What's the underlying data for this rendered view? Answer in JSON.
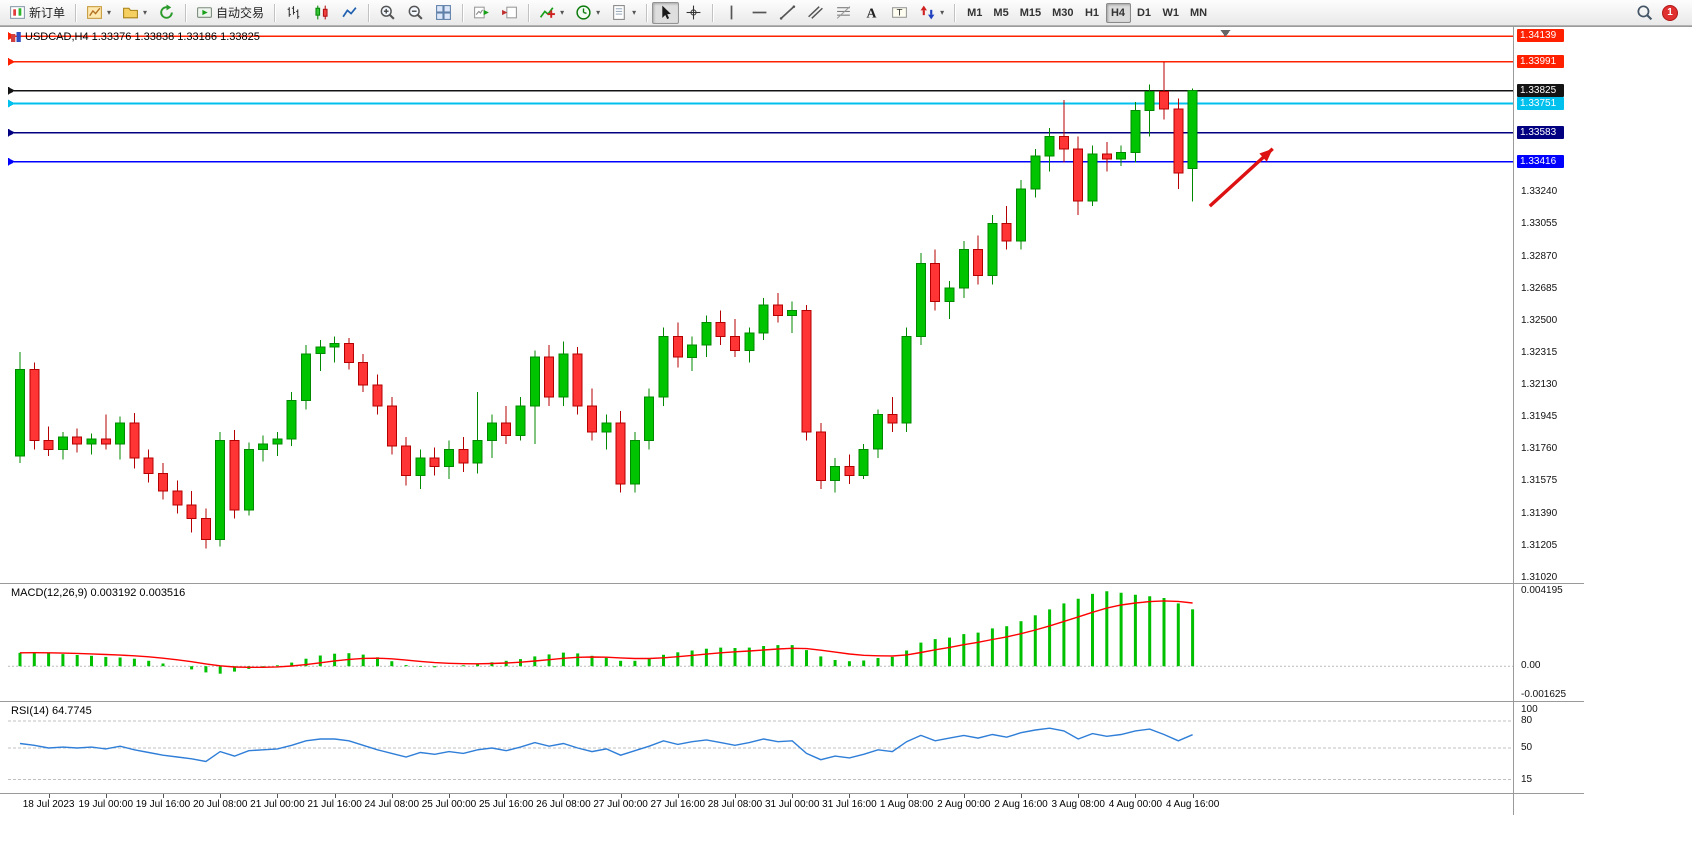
{
  "toolbar": {
    "new_order_label": "新订单",
    "autotrading_label": "自动交易",
    "timeframes": [
      "M1",
      "M5",
      "M15",
      "M30",
      "H1",
      "H4",
      "D1",
      "W1",
      "MN"
    ],
    "active_timeframe": "H4",
    "notification_count": "1"
  },
  "icons": {
    "new-order-icon": "page-with-red-green-candles",
    "new-chart-icon": "yellow-chart-page",
    "profiles-icon": "folder",
    "refresh-icon": "green-circular-arrow",
    "autotrading-icon": "green-play-panel",
    "bar-chart-icon": "ohlc-bars",
    "candlestick-chart-icon": "green-red-candles",
    "line-chart-icon": "zigzag-line",
    "zoom-in-icon": "magnifier-plus",
    "zoom-out-icon": "magnifier-minus",
    "tile-windows-icon": "2x2-grid",
    "auto-scroll-icon": "chart-green-arrow",
    "chart-shift-icon": "chart-red-triangle",
    "indicators-icon": "green-line-red-plus",
    "periods-icon": "clock",
    "templates-icon": "document-lines",
    "cursor-icon": "pointer-arrow",
    "crosshair-icon": "cross-circle",
    "vertical-line-icon": "|",
    "horizontal-line-icon": "—",
    "trendline-icon": "/",
    "channel-icon": "double-diagonal",
    "fibonacci-icon": "stacked-lines-diagonal",
    "text-icon": "A",
    "label-icon": "T-box",
    "arrows-icon": "red-up-blue-down-arrows",
    "search-icon": "magnifier",
    "chevron-down-icon": "▾",
    "chart-shift-marker": "▼"
  },
  "chart": {
    "header": "USDCAD,H4 1.33376 1.33838 1.33186 1.33825",
    "symbol": "USDCAD",
    "period": "H4",
    "ohlc": {
      "open": "1.33376",
      "high": "1.33838",
      "low": "1.33186",
      "close": "1.33825"
    }
  },
  "macd": {
    "label": "MACD(12,26,9) 0.003192 0.003516"
  },
  "rsi": {
    "label": "RSI(14) 64.7745"
  },
  "chart_data": {
    "type": "candlestick",
    "symbol": "USDCAD",
    "timeframe": "H4",
    "style": {
      "up_color": "#00c400",
      "up_border": "#008800",
      "down_color": "#ff3434",
      "down_border": "#b40000",
      "background": "#ffffff"
    },
    "price_axis": {
      "y_range": [
        1.3099,
        1.3418
      ],
      "ticks": [
        "1.33240",
        "1.33055",
        "1.32870",
        "1.32685",
        "1.32500",
        "1.32315",
        "1.32130",
        "1.31945",
        "1.31760",
        "1.31575",
        "1.31390",
        "1.31205",
        "1.31020"
      ]
    },
    "levels": [
      {
        "price": 1.34139,
        "label": "1.34139",
        "color": "#ff2000",
        "type": "resistance"
      },
      {
        "price": 1.33991,
        "label": "1.33991",
        "color": "#ff2000",
        "type": "resistance"
      },
      {
        "price": 1.33825,
        "label": "1.33825",
        "color": "#141414",
        "type": "current-price"
      },
      {
        "price": 1.33751,
        "label": "1.33751",
        "color": "#00c0ee",
        "type": "resistance"
      },
      {
        "price": 1.33583,
        "label": "1.33583",
        "color": "#000080",
        "type": "support"
      },
      {
        "price": 1.33416,
        "label": "1.33416",
        "color": "#0000ff",
        "type": "support"
      }
    ],
    "candles": {
      "times": [
        "18 Jul 00:00",
        "18 Jul 04:00",
        "18 Jul 08:00",
        "18 Jul 12:00",
        "18 Jul 16:00",
        "18 Jul 20:00",
        "19 Jul 00:00",
        "19 Jul 04:00",
        "19 Jul 08:00",
        "19 Jul 12:00",
        "19 Jul 16:00",
        "19 Jul 20:00",
        "20 Jul 00:00",
        "20 Jul 04:00",
        "20 Jul 08:00",
        "20 Jul 12:00",
        "20 Jul 16:00",
        "20 Jul 20:00",
        "21 Jul 00:00",
        "21 Jul 04:00",
        "21 Jul 08:00",
        "21 Jul 12:00",
        "21 Jul 16:00",
        "21 Jul 20:00",
        "24 Jul 00:00",
        "24 Jul 04:00",
        "24 Jul 08:00",
        "24 Jul 12:00",
        "24 Jul 16:00",
        "24 Jul 20:00",
        "25 Jul 00:00",
        "25 Jul 04:00",
        "25 Jul 08:00",
        "25 Jul 12:00",
        "25 Jul 16:00",
        "25 Jul 20:00",
        "26 Jul 00:00",
        "26 Jul 04:00",
        "26 Jul 08:00",
        "26 Jul 12:00",
        "26 Jul 16:00",
        "26 Jul 20:00",
        "27 Jul 00:00",
        "27 Jul 04:00",
        "27 Jul 08:00",
        "27 Jul 12:00",
        "27 Jul 16:00",
        "27 Jul 20:00",
        "28 Jul 00:00",
        "28 Jul 04:00",
        "28 Jul 08:00",
        "28 Jul 12:00",
        "28 Jul 16:00",
        "28 Jul 20:00",
        "31 Jul 00:00",
        "31 Jul 04:00",
        "31 Jul 08:00",
        "31 Jul 12:00",
        "31 Jul 16:00",
        "31 Jul 20:00",
        "1 Aug 00:00",
        "1 Aug 04:00",
        "1 Aug 08:00",
        "1 Aug 12:00",
        "1 Aug 16:00",
        "1 Aug 20:00",
        "2 Aug 00:00",
        "2 Aug 04:00",
        "2 Aug 08:00",
        "2 Aug 12:00",
        "2 Aug 16:00",
        "2 Aug 20:00",
        "3 Aug 00:00",
        "3 Aug 04:00",
        "3 Aug 08:00",
        "3 Aug 12:00",
        "3 Aug 16:00",
        "3 Aug 20:00",
        "4 Aug 00:00",
        "4 Aug 04:00",
        "4 Aug 08:00",
        "4 Aug 12:00",
        "4 Aug 16:00"
      ],
      "ohlc": [
        [
          1.3172,
          1.3232,
          1.3168,
          1.3222
        ],
        [
          1.3222,
          1.3226,
          1.3176,
          1.3181
        ],
        [
          1.3181,
          1.3189,
          1.3172,
          1.3176
        ],
        [
          1.3176,
          1.3186,
          1.317,
          1.3183
        ],
        [
          1.3183,
          1.3188,
          1.3174,
          1.3179
        ],
        [
          1.3179,
          1.3185,
          1.3173,
          1.3182
        ],
        [
          1.3182,
          1.3196,
          1.3176,
          1.3179
        ],
        [
          1.3179,
          1.3195,
          1.317,
          1.3191
        ],
        [
          1.3191,
          1.3197,
          1.3165,
          1.3171
        ],
        [
          1.3171,
          1.3176,
          1.3157,
          1.3162
        ],
        [
          1.3162,
          1.3168,
          1.3147,
          1.3152
        ],
        [
          1.3152,
          1.3158,
          1.3139,
          1.3144
        ],
        [
          1.3144,
          1.3152,
          1.3128,
          1.3136
        ],
        [
          1.3136,
          1.3142,
          1.3119,
          1.3124
        ],
        [
          1.3124,
          1.3186,
          1.312,
          1.3181
        ],
        [
          1.3181,
          1.3187,
          1.3136,
          1.3141
        ],
        [
          1.3141,
          1.318,
          1.3138,
          1.3176
        ],
        [
          1.3176,
          1.3184,
          1.3169,
          1.3179
        ],
        [
          1.3179,
          1.3186,
          1.3172,
          1.3182
        ],
        [
          1.3182,
          1.3209,
          1.3178,
          1.3204
        ],
        [
          1.3204,
          1.3236,
          1.3199,
          1.3231
        ],
        [
          1.3231,
          1.3239,
          1.3221,
          1.3235
        ],
        [
          1.3235,
          1.3241,
          1.3226,
          1.3237
        ],
        [
          1.3237,
          1.324,
          1.3222,
          1.3226
        ],
        [
          1.3226,
          1.3231,
          1.3209,
          1.3213
        ],
        [
          1.3213,
          1.3219,
          1.3196,
          1.3201
        ],
        [
          1.3201,
          1.3206,
          1.3173,
          1.3178
        ],
        [
          1.3178,
          1.3183,
          1.3155,
          1.3161
        ],
        [
          1.3161,
          1.3176,
          1.3153,
          1.3171
        ],
        [
          1.3171,
          1.3177,
          1.3161,
          1.3166
        ],
        [
          1.3166,
          1.3181,
          1.3159,
          1.3176
        ],
        [
          1.3176,
          1.3183,
          1.3163,
          1.3168
        ],
        [
          1.3168,
          1.3209,
          1.3162,
          1.3181
        ],
        [
          1.3181,
          1.3196,
          1.3171,
          1.3191
        ],
        [
          1.3191,
          1.3201,
          1.3179,
          1.3184
        ],
        [
          1.3184,
          1.3206,
          1.3181,
          1.3201
        ],
        [
          1.3201,
          1.3233,
          1.3179,
          1.3229
        ],
        [
          1.3229,
          1.3236,
          1.3201,
          1.3206
        ],
        [
          1.3206,
          1.3238,
          1.3201,
          1.3231
        ],
        [
          1.3231,
          1.3235,
          1.3196,
          1.3201
        ],
        [
          1.3201,
          1.3211,
          1.3181,
          1.3186
        ],
        [
          1.3186,
          1.3196,
          1.3176,
          1.3191
        ],
        [
          1.3191,
          1.3198,
          1.3151,
          1.3156
        ],
        [
          1.3156,
          1.3186,
          1.3151,
          1.3181
        ],
        [
          1.3181,
          1.3211,
          1.3176,
          1.3206
        ],
        [
          1.3206,
          1.3246,
          1.3201,
          1.3241
        ],
        [
          1.3241,
          1.3249,
          1.3223,
          1.3229
        ],
        [
          1.3229,
          1.3241,
          1.3221,
          1.3236
        ],
        [
          1.3236,
          1.3253,
          1.3229,
          1.3249
        ],
        [
          1.3249,
          1.3256,
          1.3236,
          1.3241
        ],
        [
          1.3241,
          1.3251,
          1.3229,
          1.3233
        ],
        [
          1.3233,
          1.3246,
          1.3226,
          1.3243
        ],
        [
          1.3243,
          1.3263,
          1.3239,
          1.3259
        ],
        [
          1.3259,
          1.3266,
          1.3249,
          1.3253
        ],
        [
          1.3253,
          1.3261,
          1.3243,
          1.3256
        ],
        [
          1.3256,
          1.3259,
          1.3181,
          1.3186
        ],
        [
          1.3186,
          1.3191,
          1.3153,
          1.3158
        ],
        [
          1.3158,
          1.3171,
          1.3151,
          1.3166
        ],
        [
          1.3166,
          1.3173,
          1.3156,
          1.3161
        ],
        [
          1.3161,
          1.3179,
          1.3159,
          1.3176
        ],
        [
          1.3176,
          1.3199,
          1.3171,
          1.3196
        ],
        [
          1.3196,
          1.3206,
          1.3186,
          1.3191
        ],
        [
          1.3191,
          1.3246,
          1.3186,
          1.3241
        ],
        [
          1.3241,
          1.3289,
          1.3236,
          1.3283
        ],
        [
          1.3283,
          1.3291,
          1.3256,
          1.3261
        ],
        [
          1.3261,
          1.3273,
          1.3251,
          1.3269
        ],
        [
          1.3269,
          1.3296,
          1.3263,
          1.3291
        ],
        [
          1.3291,
          1.3299,
          1.3271,
          1.3276
        ],
        [
          1.3276,
          1.3311,
          1.3271,
          1.3306
        ],
        [
          1.3306,
          1.3316,
          1.3291,
          1.3296
        ],
        [
          1.3296,
          1.3331,
          1.3291,
          1.3326
        ],
        [
          1.3326,
          1.3349,
          1.3321,
          1.3345
        ],
        [
          1.3345,
          1.3361,
          1.3336,
          1.3356
        ],
        [
          1.3356,
          1.3377,
          1.3341,
          1.3349
        ],
        [
          1.3349,
          1.3356,
          1.3311,
          1.3319
        ],
        [
          1.3319,
          1.3351,
          1.3316,
          1.3346
        ],
        [
          1.3346,
          1.3353,
          1.3336,
          1.3343
        ],
        [
          1.3343,
          1.3351,
          1.3339,
          1.3347
        ],
        [
          1.3347,
          1.3376,
          1.3341,
          1.3371
        ],
        [
          1.3371,
          1.3386,
          1.3356,
          1.3382
        ],
        [
          1.3382,
          1.3399,
          1.3366,
          1.3372
        ],
        [
          1.3372,
          1.3378,
          1.3326,
          1.3335
        ],
        [
          1.33376,
          1.33838,
          1.33186,
          1.33825
        ]
      ]
    },
    "time_axis": [
      {
        "label": "18 Jul 2023",
        "bar": 2
      },
      {
        "label": "19 Jul 00:00",
        "bar": 6
      },
      {
        "label": "19 Jul 16:00",
        "bar": 10
      },
      {
        "label": "20 Jul 08:00",
        "bar": 14
      },
      {
        "label": "21 Jul 00:00",
        "bar": 18
      },
      {
        "label": "21 Jul 16:00",
        "bar": 22
      },
      {
        "label": "24 Jul 08:00",
        "bar": 26
      },
      {
        "label": "25 Jul 00:00",
        "bar": 30
      },
      {
        "label": "25 Jul 16:00",
        "bar": 34
      },
      {
        "label": "26 Jul 08:00",
        "bar": 38
      },
      {
        "label": "27 Jul 00:00",
        "bar": 42
      },
      {
        "label": "27 Jul 16:00",
        "bar": 46
      },
      {
        "label": "28 Jul 08:00",
        "bar": 50
      },
      {
        "label": "31 Jul 00:00",
        "bar": 54
      },
      {
        "label": "31 Jul 16:00",
        "bar": 58
      },
      {
        "label": "1 Aug 08:00",
        "bar": 62
      },
      {
        "label": "2 Aug 00:00",
        "bar": 66
      },
      {
        "label": "2 Aug 16:00",
        "bar": 70
      },
      {
        "label": "3 Aug 08:00",
        "bar": 74
      },
      {
        "label": "4 Aug 00:00",
        "bar": 78
      },
      {
        "label": "4 Aug 16:00",
        "bar": 82
      }
    ],
    "indicators": {
      "macd": {
        "name": "MACD(12,26,9)",
        "main_value": "0.003192",
        "signal_value": "0.003516",
        "histogram_color": "#00c000",
        "signal_color": "#ff0000",
        "signal_period": 9,
        "y_range": [
          -0.00195,
          0.00455
        ],
        "scale_ticks": [
          {
            "value": 0.004195,
            "label": "0.004195"
          },
          {
            "value": 0,
            "label": "0.00"
          },
          {
            "value": -0.001625,
            "label": "-0.001625"
          }
        ],
        "values": [
          0.00075,
          0.00078,
          0.00073,
          0.00068,
          0.00063,
          0.00058,
          0.00052,
          0.00049,
          0.00042,
          0.0003,
          0.00015,
          0.0,
          -0.00018,
          -0.00035,
          -0.00042,
          -0.0003,
          -0.00015,
          -5e-05,
          5e-05,
          0.0002,
          0.00042,
          0.0006,
          0.0007,
          0.00073,
          0.00065,
          0.0005,
          0.00028,
          6e-05,
          -4e-05,
          -6e-05,
          0.0,
          5e-05,
          0.00012,
          0.00022,
          0.0003,
          0.0004,
          0.00055,
          0.00066,
          0.00076,
          0.00072,
          0.00058,
          0.00047,
          0.0003,
          0.0003,
          0.00042,
          0.00064,
          0.00078,
          0.00088,
          0.00098,
          0.00104,
          0.00102,
          0.00104,
          0.00113,
          0.00118,
          0.00118,
          0.0009,
          0.00055,
          0.00035,
          0.00028,
          0.00032,
          0.00046,
          0.00052,
          0.00088,
          0.00132,
          0.00152,
          0.0016,
          0.0018,
          0.00188,
          0.00212,
          0.00224,
          0.00252,
          0.00285,
          0.00318,
          0.00352,
          0.00378,
          0.00405,
          0.0042,
          0.00412,
          0.004,
          0.00392,
          0.00382,
          0.00352,
          0.00319
        ]
      },
      "rsi": {
        "name": "RSI(14)",
        "period": 14,
        "current_value": "64.7745",
        "color": "#2f7ed8",
        "levels": [
          80,
          50,
          15
        ],
        "y_range": [
          0,
          100
        ],
        "scale_ticks": [
          {
            "value": 100,
            "label": "100"
          },
          {
            "value": 80,
            "label": "80"
          },
          {
            "value": 50,
            "label": "50"
          },
          {
            "value": 15,
            "label": "15"
          }
        ],
        "values": [
          55,
          53,
          50,
          51,
          50,
          51,
          49,
          52,
          48,
          45,
          42,
          40,
          38,
          35,
          46,
          41,
          47,
          48,
          49,
          53,
          58,
          60,
          60,
          58,
          53,
          48,
          44,
          40,
          45,
          43,
          46,
          44,
          48,
          50,
          47,
          51,
          56,
          52,
          55,
          50,
          46,
          49,
          42,
          47,
          52,
          58,
          54,
          57,
          59,
          56,
          53,
          56,
          60,
          57,
          58,
          44,
          37,
          41,
          39,
          43,
          48,
          46,
          57,
          64,
          58,
          61,
          64,
          61,
          65,
          62,
          67,
          70,
          72,
          69,
          60,
          66,
          63,
          65,
          69,
          71,
          65,
          58,
          64.7745
        ]
      }
    },
    "annotations": {
      "arrow": {
        "from_bar": 83.2,
        "from_price": 1.3316,
        "to_bar": 87.6,
        "to_price": 1.3349,
        "color": "#dd1111"
      },
      "shift_marker_bar": 84.3
    }
  }
}
